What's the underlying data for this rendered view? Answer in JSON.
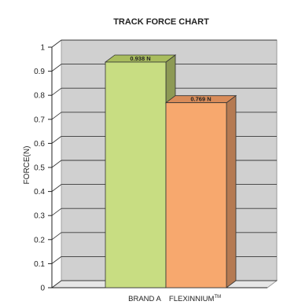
{
  "chart_data": {
    "type": "bar",
    "title": "TRACK FORCE CHART",
    "ylabel": "FORCE(N)",
    "xlabel": "",
    "categories": [
      "BRAND A",
      "FLEXINNIUM"
    ],
    "category_superscripts": [
      "",
      "TM"
    ],
    "values": [
      0.938,
      0.769
    ],
    "data_labels": [
      "0.938 N",
      "0.769 N"
    ],
    "ylim": [
      0,
      1
    ],
    "yticks": [
      0,
      0.1,
      0.2,
      0.3,
      0.4,
      0.5,
      0.6,
      0.7,
      0.8,
      0.9,
      1
    ],
    "ytick_labels": [
      "0",
      "0.1",
      "0.2",
      "0.3",
      "0.4",
      "0.5",
      "0.6",
      "0.7",
      "0.8",
      "0.9",
      "1"
    ],
    "grid": true,
    "bar_colors": [
      "#c8dd82",
      "#f7a86e"
    ],
    "bar_side_colors": [
      "#8d9a55",
      "#b57a52"
    ],
    "bar_top_colors": [
      "#a9bd5e",
      "#d98c5a"
    ],
    "plot_background": "#d0d0d0"
  }
}
